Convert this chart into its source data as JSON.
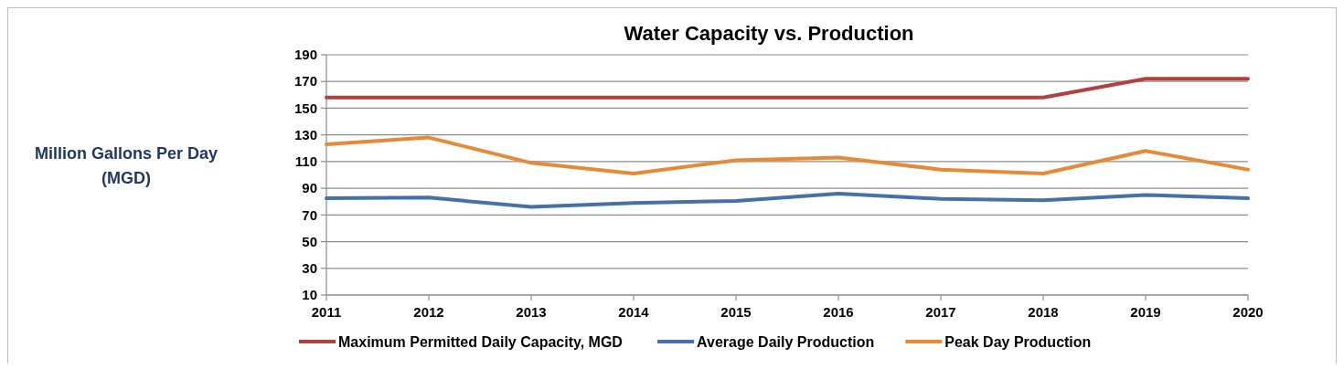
{
  "chart_data": {
    "type": "line",
    "title": "Water Capacity vs. Production",
    "ylabel": "Million Gallons Per Day\n(MGD)",
    "x": [
      2011,
      2012,
      2013,
      2014,
      2015,
      2016,
      2017,
      2018,
      2019,
      2020
    ],
    "xlim": [
      2011,
      2020
    ],
    "xticks": [
      2011,
      2012,
      2013,
      2014,
      2015,
      2016,
      2017,
      2018,
      2019,
      2020
    ],
    "ylim": [
      10,
      190
    ],
    "yticks": [
      10,
      30,
      50,
      70,
      90,
      110,
      130,
      150,
      170,
      190
    ],
    "grid": "y",
    "legend": "bottom",
    "marker": "none",
    "line_style": "solid",
    "series": [
      {
        "name": "Maximum Permitted Daily Capacity, MGD",
        "color": "#b0413e",
        "values": [
          158,
          158,
          158,
          158,
          158,
          158,
          158,
          158,
          172,
          172
        ]
      },
      {
        "name": "Average Daily Production",
        "color": "#4371a8",
        "values": [
          82.5,
          83,
          76,
          79,
          80.5,
          86,
          82,
          81,
          85,
          82.5
        ]
      },
      {
        "name": "Peak Day Production",
        "color": "#e68a35",
        "values": [
          123,
          128,
          109,
          101,
          111,
          113,
          104,
          101,
          118,
          104
        ]
      }
    ]
  }
}
